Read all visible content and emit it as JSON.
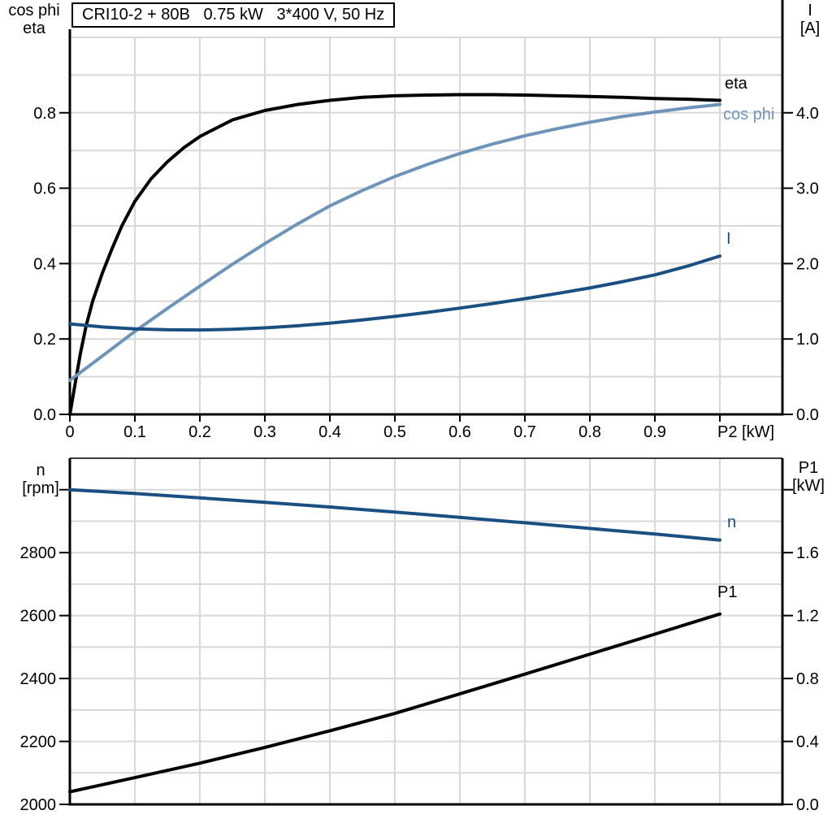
{
  "title": {
    "text": "CRI10-2 + 80B   0.75 kW   3*400 V, 50 Hz"
  },
  "axis_titles": {
    "top_left": [
      "cos phi",
      "eta"
    ],
    "top_right": [
      "I",
      "[A]"
    ],
    "bottom_left": [
      "n",
      "[rpm]"
    ],
    "bottom_right": [
      "P1",
      "[kW]"
    ]
  },
  "curve_labels": {
    "eta": "eta",
    "cos_phi": "cos phi",
    "current": "I",
    "speed": "n",
    "power_in": "P1"
  },
  "colors": {
    "eta": "#000000",
    "cos_phi": "#6F94BA",
    "current": "#1A4F82",
    "speed": "#1A4F82",
    "power_in": "#000000",
    "grid": "#D8D8D8",
    "axis": "#000000",
    "border_dark": "#3C3C3C",
    "background": "#FFFFFF"
  },
  "chart_data": [
    {
      "type": "line",
      "name": "motor-efficiency-current-chart",
      "title": "CRI10-2 + 80B   0.75 kW   3*400 V, 50 Hz",
      "x_axis": {
        "label": "P2 [kW]",
        "label_at": 1.0,
        "range": [
          0,
          1.09625
        ],
        "grid_step": 0.1,
        "ticks": [
          {
            "v": 0,
            "t": "0"
          },
          {
            "v": 0.1,
            "t": "0.1"
          },
          {
            "v": 0.2,
            "t": "0.2"
          },
          {
            "v": 0.3,
            "t": "0.3"
          },
          {
            "v": 0.4,
            "t": "0.4"
          },
          {
            "v": 0.5,
            "t": "0.5"
          },
          {
            "v": 0.6,
            "t": "0.6"
          },
          {
            "v": 0.7,
            "t": "0.7"
          },
          {
            "v": 0.8,
            "t": "0.8"
          },
          {
            "v": 0.9,
            "t": "0.9"
          },
          {
            "v": 1.0,
            "t": ""
          }
        ]
      },
      "left_axis": {
        "label": "cos phi / eta",
        "range": [
          0,
          1.0
        ],
        "grid_step": 0.1,
        "ticks": [
          {
            "v": 0,
            "t": "0.0"
          },
          {
            "v": 0.2,
            "t": "0.2"
          },
          {
            "v": 0.4,
            "t": "0.4"
          },
          {
            "v": 0.6,
            "t": "0.6"
          },
          {
            "v": 0.8,
            "t": "0.8"
          }
        ]
      },
      "right_axis": {
        "label": "I [A]",
        "range": [
          0,
          5.0
        ],
        "ticks": [
          {
            "v": 0,
            "t": "0.0"
          },
          {
            "v": 1,
            "t": "1.0"
          },
          {
            "v": 2,
            "t": "2.0"
          },
          {
            "v": 3,
            "t": "3.0"
          },
          {
            "v": 4,
            "t": "4.0"
          }
        ]
      },
      "series": [
        {
          "name": "eta",
          "axis": "left",
          "color_key": "eta",
          "points": [
            [
              0,
              0
            ],
            [
              0.008,
              0.08
            ],
            [
              0.016,
              0.16
            ],
            [
              0.025,
              0.235
            ],
            [
              0.035,
              0.3
            ],
            [
              0.05,
              0.375
            ],
            [
              0.065,
              0.44
            ],
            [
              0.08,
              0.5
            ],
            [
              0.1,
              0.565
            ],
            [
              0.125,
              0.625
            ],
            [
              0.15,
              0.67
            ],
            [
              0.175,
              0.707
            ],
            [
              0.2,
              0.737
            ],
            [
              0.25,
              0.781
            ],
            [
              0.3,
              0.806
            ],
            [
              0.35,
              0.822
            ],
            [
              0.4,
              0.833
            ],
            [
              0.45,
              0.841
            ],
            [
              0.5,
              0.845
            ],
            [
              0.55,
              0.847
            ],
            [
              0.6,
              0.848
            ],
            [
              0.65,
              0.848
            ],
            [
              0.7,
              0.847
            ],
            [
              0.75,
              0.845
            ],
            [
              0.8,
              0.843
            ],
            [
              0.85,
              0.841
            ],
            [
              0.9,
              0.838
            ],
            [
              0.95,
              0.836
            ],
            [
              1.0,
              0.833
            ]
          ]
        },
        {
          "name": "cos phi",
          "axis": "left",
          "color_key": "cos_phi",
          "points": [
            [
              0,
              0.09
            ],
            [
              0.05,
              0.155
            ],
            [
              0.1,
              0.22
            ],
            [
              0.15,
              0.281
            ],
            [
              0.2,
              0.34
            ],
            [
              0.25,
              0.398
            ],
            [
              0.3,
              0.453
            ],
            [
              0.35,
              0.505
            ],
            [
              0.4,
              0.553
            ],
            [
              0.45,
              0.594
            ],
            [
              0.5,
              0.631
            ],
            [
              0.55,
              0.663
            ],
            [
              0.6,
              0.692
            ],
            [
              0.65,
              0.717
            ],
            [
              0.7,
              0.739
            ],
            [
              0.75,
              0.758
            ],
            [
              0.8,
              0.775
            ],
            [
              0.85,
              0.79
            ],
            [
              0.9,
              0.802
            ],
            [
              0.95,
              0.813
            ],
            [
              1.0,
              0.822
            ]
          ]
        },
        {
          "name": "I",
          "axis": "right",
          "color_key": "current",
          "points": [
            [
              0,
              1.2
            ],
            [
              0.05,
              1.16
            ],
            [
              0.1,
              1.135
            ],
            [
              0.15,
              1.122
            ],
            [
              0.2,
              1.12
            ],
            [
              0.25,
              1.128
            ],
            [
              0.3,
              1.148
            ],
            [
              0.35,
              1.175
            ],
            [
              0.4,
              1.21
            ],
            [
              0.45,
              1.252
            ],
            [
              0.5,
              1.3
            ],
            [
              0.55,
              1.352
            ],
            [
              0.6,
              1.41
            ],
            [
              0.65,
              1.47
            ],
            [
              0.7,
              1.535
            ],
            [
              0.75,
              1.603
            ],
            [
              0.8,
              1.677
            ],
            [
              0.85,
              1.76
            ],
            [
              0.9,
              1.85
            ],
            [
              0.95,
              1.965
            ],
            [
              1.0,
              2.1
            ]
          ]
        }
      ]
    },
    {
      "type": "line",
      "name": "speed-input-power-chart",
      "x_axis": {
        "label": "",
        "range": [
          0,
          1.09625
        ],
        "grid_step": 0.1,
        "ticks": []
      },
      "left_axis": {
        "label": "n [rpm]",
        "range": [
          2000,
          3100
        ],
        "grid_step": 100,
        "ticks": [
          {
            "v": 2000,
            "t": "2000"
          },
          {
            "v": 2200,
            "t": "2200"
          },
          {
            "v": 2400,
            "t": "2400"
          },
          {
            "v": 2600,
            "t": "2600"
          },
          {
            "v": 2800,
            "t": "2800"
          },
          {
            "v": 3000,
            "t": ""
          }
        ]
      },
      "right_axis": {
        "label": "P1 [kW]",
        "range": [
          0,
          2.2
        ],
        "ticks": [
          {
            "v": 0,
            "t": "0.0"
          },
          {
            "v": 0.4,
            "t": "0.4"
          },
          {
            "v": 0.8,
            "t": "0.8"
          },
          {
            "v": 1.2,
            "t": "1.2"
          },
          {
            "v": 1.6,
            "t": "1.6"
          },
          {
            "v": 2.0,
            "t": ""
          }
        ]
      },
      "series": [
        {
          "name": "n",
          "axis": "left",
          "color_key": "speed",
          "points": [
            [
              0,
              3000
            ],
            [
              0.1,
              2988
            ],
            [
              0.2,
              2974
            ],
            [
              0.3,
              2960
            ],
            [
              0.4,
              2945
            ],
            [
              0.5,
              2929
            ],
            [
              0.6,
              2912
            ],
            [
              0.7,
              2895
            ],
            [
              0.8,
              2877
            ],
            [
              0.9,
              2859
            ],
            [
              1.0,
              2840
            ]
          ]
        },
        {
          "name": "P1",
          "axis": "right",
          "color_key": "power_in",
          "points": [
            [
              0,
              0.08
            ],
            [
              0.1,
              0.17
            ],
            [
              0.2,
              0.262
            ],
            [
              0.3,
              0.362
            ],
            [
              0.4,
              0.468
            ],
            [
              0.5,
              0.578
            ],
            [
              0.6,
              0.703
            ],
            [
              0.7,
              0.828
            ],
            [
              0.8,
              0.955
            ],
            [
              0.9,
              1.082
            ],
            [
              1.0,
              1.21
            ]
          ]
        }
      ]
    }
  ]
}
